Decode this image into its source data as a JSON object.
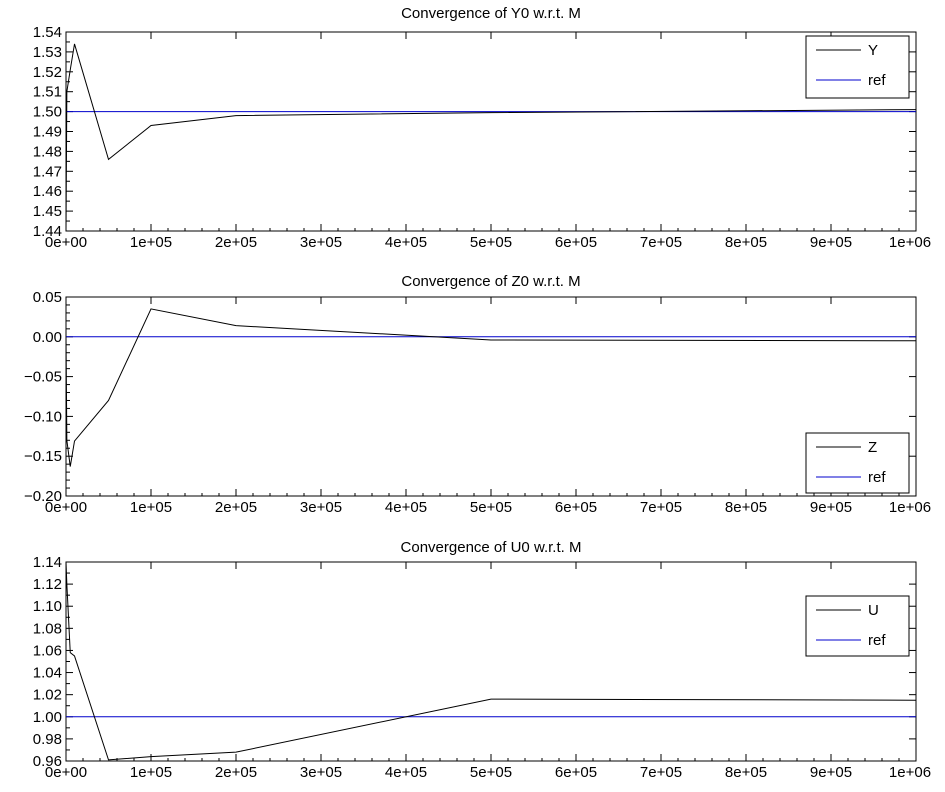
{
  "chart_data": [
    {
      "type": "line",
      "title": "Convergence of Y0 w.r.t. M",
      "xlabel": "",
      "ylabel": "",
      "xlim": [
        0,
        1000000
      ],
      "ylim": [
        1.44,
        1.54
      ],
      "xtick_labels": [
        "0e+00",
        "1e+05",
        "2e+05",
        "3e+05",
        "4e+05",
        "5e+05",
        "6e+05",
        "7e+05",
        "8e+05",
        "9e+05",
        "1e+06"
      ],
      "ytick_labels": [
        "1.44",
        "1.45",
        "1.46",
        "1.47",
        "1.48",
        "1.49",
        "1.50",
        "1.51",
        "1.52",
        "1.53",
        "1.54"
      ],
      "legend_position": "top-right",
      "grid": false,
      "series": [
        {
          "name": "Y",
          "color": "#000000",
          "x": [
            0,
            1000,
            5000,
            10000,
            50000,
            100000,
            200000,
            500000,
            1000000
          ],
          "y": [
            1.44,
            1.51,
            1.521,
            1.534,
            1.476,
            1.493,
            1.498,
            1.4995,
            1.501
          ]
        },
        {
          "name": "ref",
          "color": "#0000cc",
          "x": [
            0,
            1000000
          ],
          "y": [
            1.5,
            1.5
          ]
        }
      ]
    },
    {
      "type": "line",
      "title": "Convergence of Z0 w.r.t. M",
      "xlabel": "",
      "ylabel": "",
      "xlim": [
        0,
        1000000
      ],
      "ylim": [
        -0.2,
        0.05
      ],
      "xtick_labels": [
        "0e+00",
        "1e+05",
        "2e+05",
        "3e+05",
        "4e+05",
        "5e+05",
        "6e+05",
        "7e+05",
        "8e+05",
        "9e+05",
        "1e+06"
      ],
      "ytick_labels": [
        "−0.20",
        "−0.15",
        "−0.10",
        "−0.05",
        "0.00",
        "0.05"
      ],
      "legend_position": "bottom-right",
      "grid": false,
      "series": [
        {
          "name": "Z",
          "color": "#000000",
          "x": [
            0,
            1000,
            5000,
            10000,
            50000,
            100000,
            200000,
            500000,
            1000000
          ],
          "y": [
            0.0,
            -0.13,
            -0.163,
            -0.131,
            -0.08,
            0.035,
            0.014,
            -0.004,
            -0.005
          ]
        },
        {
          "name": "ref",
          "color": "#0000cc",
          "x": [
            0,
            1000000
          ],
          "y": [
            0.0,
            0.0
          ]
        }
      ]
    },
    {
      "type": "line",
      "title": "Convergence of U0 w.r.t. M",
      "xlabel": "",
      "ylabel": "",
      "xlim": [
        0,
        1000000
      ],
      "ylim": [
        0.96,
        1.14
      ],
      "xtick_labels": [
        "0e+00",
        "1e+05",
        "2e+05",
        "3e+05",
        "4e+05",
        "5e+05",
        "6e+05",
        "7e+05",
        "8e+05",
        "9e+05",
        "1e+06"
      ],
      "ytick_labels": [
        "0.96",
        "0.98",
        "1.00",
        "1.02",
        "1.04",
        "1.06",
        "1.08",
        "1.10",
        "1.12",
        "1.14"
      ],
      "legend_position": "top-right",
      "grid": false,
      "series": [
        {
          "name": "U",
          "color": "#000000",
          "x": [
            0,
            1000,
            5000,
            10000,
            50000,
            100000,
            200000,
            500000,
            1000000
          ],
          "y": [
            1.14,
            1.12,
            1.058,
            1.055,
            0.961,
            0.964,
            0.968,
            1.016,
            1.015
          ]
        },
        {
          "name": "ref",
          "color": "#0000cc",
          "x": [
            0,
            1000000
          ],
          "y": [
            1.0,
            1.0
          ]
        }
      ]
    }
  ]
}
